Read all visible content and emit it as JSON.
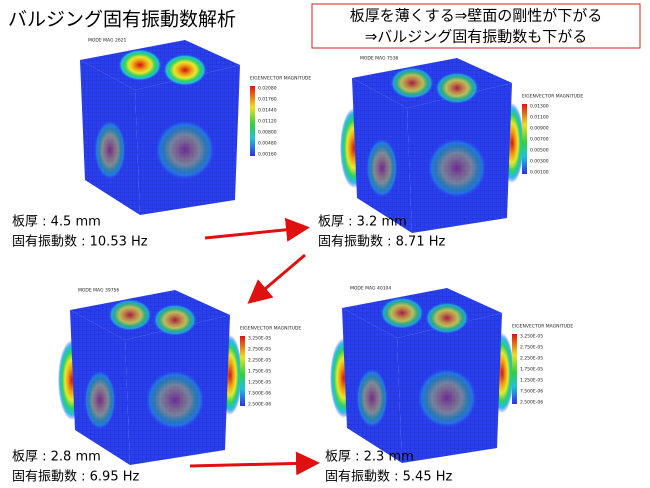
{
  "title": "バルジング固有振動数解析",
  "note": {
    "lines": [
      "板厚を薄くする⇒壁面の剛性が下がる",
      "⇒バルジング固有振動数も下がる"
    ]
  },
  "panels": [
    {
      "header": "MODE MAG 2621",
      "legend_title": "EIGENVECTOR MAGNITUDE",
      "legend_values": [
        "0.02080",
        "0.01760",
        "0.01440",
        "0.01120",
        "0.00800",
        "0.00480",
        "0.00160"
      ],
      "thickness": "板厚 : 4.5 mm",
      "frequency": "固有振動数 : 10.53 Hz"
    },
    {
      "header": "MODE MAG 7536",
      "legend_title": "EIGENVECTOR MAGNITUDE",
      "legend_values": [
        "0.01300",
        "0.01100",
        "0.00900",
        "0.00700",
        "0.00500",
        "0.00300",
        "0.00100"
      ],
      "thickness": "板厚 : 3.2 mm",
      "frequency": "固有振動数 : 8.71 Hz"
    },
    {
      "header": "MODE MAG 39756",
      "legend_title": "EIGENVECTOR MAGNITUDE",
      "legend_values": [
        "3.250E-05",
        "2.750E-05",
        "2.250E-05",
        "1.750E-05",
        "1.250E-05",
        "7.500E-06",
        "2.500E-06"
      ],
      "thickness": "板厚 : 2.8 mm",
      "frequency": "固有振動数 : 6.95 Hz"
    },
    {
      "header": "MODE MAG 40104",
      "legend_title": "EIGENVECTOR MAGNITUDE",
      "legend_values": [
        "3.250E-05",
        "2.750E-05",
        "2.250E-05",
        "1.750E-05",
        "1.250E-05",
        "7.500E-06",
        "2.500E-06"
      ],
      "thickness": "板厚 : 2.3 mm",
      "frequency": "固有振動数 : 5.45 Hz"
    }
  ]
}
